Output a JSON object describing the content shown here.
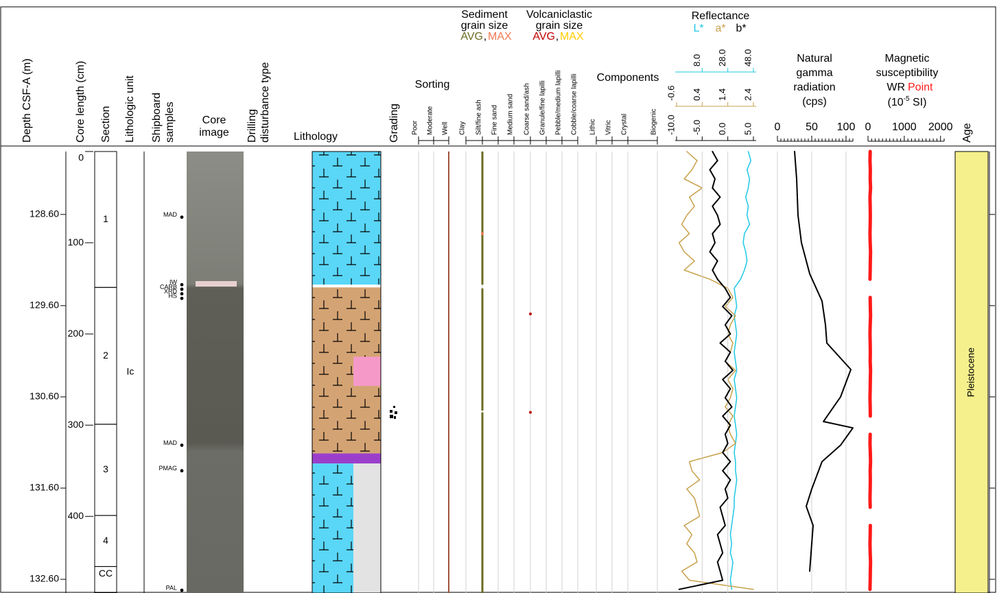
{
  "depth": {
    "label": "Depth CSF-A (m)",
    "lim": [
      127.91,
      132.75
    ],
    "ticks": [
      {
        "value": 128.6,
        "label": "128.60"
      },
      {
        "value": 129.6,
        "label": "129.60"
      },
      {
        "value": 130.6,
        "label": "130.60"
      },
      {
        "value": 131.6,
        "label": "131.60"
      },
      {
        "value": 132.6,
        "label": "132.60"
      }
    ]
  },
  "core_length": {
    "label": "Core length (cm)",
    "lim": [
      0,
      484
    ],
    "ticks": [
      0,
      100,
      200,
      300,
      400
    ]
  },
  "section": {
    "label": "Section",
    "sections": [
      {
        "name": "1",
        "top": 0,
        "bottom": 149
      },
      {
        "name": "2",
        "top": 149,
        "bottom": 299
      },
      {
        "name": "3",
        "top": 299,
        "bottom": 399
      },
      {
        "name": "4",
        "top": 399,
        "bottom": 455
      },
      {
        "name": "CC",
        "top": 455,
        "bottom": 484
      }
    ]
  },
  "lithologic_unit": {
    "label": "Lithologic unit",
    "units": [
      {
        "name": "Ic",
        "top": 0,
        "bottom": 484
      }
    ]
  },
  "samples": {
    "label": [
      "Shipboard",
      "samples"
    ],
    "items": [
      {
        "name": "MAD",
        "cm": 72
      },
      {
        "name": "IW",
        "cm": 146
      },
      {
        "name": "CARB",
        "cm": 151
      },
      {
        "name": "XRD",
        "cm": 156
      },
      {
        "name": "HS",
        "cm": 161
      },
      {
        "name": "MAD",
        "cm": 322
      },
      {
        "name": "PMAG",
        "cm": 350
      },
      {
        "name": "PAL",
        "cm": 481
      }
    ]
  },
  "core_image": {
    "label": [
      "Core",
      "image"
    ]
  },
  "drilling": {
    "label": [
      "Drilling",
      "disturbance type"
    ]
  },
  "lithology": {
    "label": "Lithology",
    "main": [
      {
        "top": 0,
        "bottom": 146,
        "color": "#5ad6f6"
      },
      {
        "top": 146,
        "bottom": 149,
        "color": "#ffffff"
      },
      {
        "top": 149,
        "bottom": 331,
        "color": "#d4a373"
      },
      {
        "top": 331,
        "bottom": 342,
        "color": "#9b3fcb"
      },
      {
        "top": 342,
        "bottom": 484,
        "color": "#5ad6f6"
      }
    ],
    "minor": [
      {
        "top": 225,
        "bottom": 257,
        "color": "#f59ac8"
      },
      {
        "top": 342,
        "bottom": 484,
        "color": "#e3e3e3"
      }
    ]
  },
  "grading": {
    "label": "Grading"
  },
  "sorting": {
    "label": "Sorting",
    "classes": [
      "Poor",
      "Moderate",
      "Well"
    ],
    "color": "#a0523d",
    "intervals": [
      {
        "top": 0,
        "bottom": 484,
        "class": "Well"
      }
    ]
  },
  "grain_size": {
    "sediment_title": [
      "Sediment",
      "grain size"
    ],
    "volcanic_title": [
      "Volcaniclastic",
      "grain size"
    ],
    "separator": ",",
    "sediment_avg": {
      "name": "AVG",
      "color": "#6b6b22"
    },
    "sediment_max": {
      "name": "MAX",
      "color": "#f07850"
    },
    "volcanic_avg": {
      "name": "AVG",
      "color": "#c00000"
    },
    "volcanic_max": {
      "name": "MAX",
      "color": "#ffcc00"
    },
    "classes": [
      "Clay",
      "Silt/fine ash",
      "Fine sand",
      "Medium sand",
      "Coarse sand/ash",
      "Granule/fine lapilli",
      "Pebble/medium lapilli",
      "Cobble/coarse lapilli"
    ],
    "sediment_avg_intervals": [
      {
        "top": 0,
        "bottom": 146,
        "class": "Silt/fine ash"
      },
      {
        "top": 150,
        "bottom": 284,
        "class": "Silt/fine ash"
      },
      {
        "top": 286,
        "bottom": 484,
        "class": "Silt/fine ash"
      }
    ],
    "sediment_max_points": [
      {
        "cm": 90,
        "class": "Silt/fine ash"
      }
    ],
    "volcanic_avg_points": [
      {
        "cm": 178,
        "class": "Coarse sand/ash"
      },
      {
        "cm": 286,
        "class": "Coarse sand/ash"
      }
    ]
  },
  "components": {
    "label": "Components",
    "classes": [
      "Lithic",
      "Vitric",
      "Crystal",
      "Biogenic"
    ]
  },
  "log_cm": [
    0,
    10,
    20,
    30,
    40,
    50,
    60,
    70,
    80,
    90,
    100,
    110,
    120,
    130,
    140,
    150,
    160,
    170,
    180,
    190,
    200,
    210,
    220,
    230,
    240,
    250,
    260,
    270,
    280,
    290,
    300,
    310,
    320,
    330,
    340,
    350,
    360,
    370,
    380,
    390,
    400,
    410,
    420,
    430,
    440,
    450,
    460,
    470,
    480
  ],
  "reflectance": {
    "title": "Reflectance",
    "series": [
      {
        "name": "L*",
        "color": "#1ec8e6",
        "xlim": [
          -12,
          48
        ],
        "xticks": [
          {
            "value": 8,
            "label": "8.0"
          },
          {
            "value": 28,
            "label": "28.0"
          },
          {
            "value": 48,
            "label": "48.0"
          }
        ],
        "values": [
          44,
          46,
          43,
          45,
          44,
          42,
          44,
          43,
          45,
          41,
          40,
          42,
          43,
          41,
          38,
          33,
          34,
          35,
          33,
          34,
          35,
          34,
          33,
          34,
          35,
          33,
          34,
          35,
          34,
          33,
          34,
          35,
          34,
          33,
          34,
          34,
          35,
          34,
          33,
          33,
          32,
          31,
          30,
          31,
          30,
          32,
          31,
          30,
          31
        ]
      },
      {
        "name": "a*",
        "color": "#c8a04a",
        "xlim": [
          -0.6,
          2.4
        ],
        "xticks": [
          -0.6,
          0.4,
          1.4,
          2.4
        ],
        "values": [
          -0.2,
          0.2,
          0,
          -0.3,
          0.4,
          -0.1,
          0.1,
          -0.2,
          -0.4,
          -0.1,
          -0.5,
          -0.3,
          0.1,
          -0.3,
          0.7,
          1.4,
          1.6,
          1.3,
          1.7,
          1.5,
          1.4,
          1.6,
          1.5,
          1.3,
          1.7,
          1.4,
          1.6,
          1.5,
          1.3,
          1.6,
          1.4,
          1.5,
          1.7,
          1.2,
          -0.1,
          0,
          0.3,
          -0.2,
          0.1,
          0.2,
          0.3,
          -0.3,
          0,
          -0.2,
          0.1,
          0.2,
          -0.4,
          -0.1,
          2.4
        ]
      },
      {
        "name": "b*",
        "color": "#000000",
        "xlim": [
          -10,
          5
        ],
        "xticks": [
          {
            "value": -10,
            "label": "-10.0"
          },
          {
            "value": -5,
            "label": "-5.0"
          },
          {
            "value": 0,
            "label": "0.0"
          },
          {
            "value": 5,
            "label": "5.0"
          }
        ],
        "values": [
          -3,
          -2,
          -3.5,
          -2.5,
          -3,
          -1.5,
          -3,
          -2,
          -1.5,
          -3,
          -2.5,
          -3.5,
          -2,
          -3,
          -2,
          -0.5,
          0.5,
          -1,
          0.8,
          -0.5,
          0.5,
          -1.5,
          0.5,
          -0.5,
          1,
          -1,
          0.5,
          -0.5,
          0.8,
          -1,
          0.5,
          -0.5,
          0,
          -1,
          0.5,
          -1,
          0.5,
          -0.5,
          0,
          -1.5,
          -1,
          -0.5,
          -2,
          -1.5,
          -1,
          -2,
          -1.5,
          -1,
          -9.5
        ]
      }
    ]
  },
  "ngr": {
    "title": [
      "Natural",
      "gamma",
      "radiation",
      "(cps)"
    ],
    "color": "#000000",
    "xlim": [
      0,
      110
    ],
    "xticks": [
      0,
      50,
      100
    ],
    "cm": [
      0,
      30,
      70,
      100,
      134,
      164,
      190,
      210,
      239,
      269,
      296,
      303,
      322,
      340,
      370,
      389,
      410,
      430,
      460
    ],
    "values": [
      25,
      28,
      30,
      35,
      47,
      65,
      70,
      72,
      107,
      92,
      67,
      110,
      92,
      65,
      50,
      42,
      52,
      50,
      47
    ]
  },
  "ms": {
    "title": [
      "Magnetic",
      "susceptibility"
    ],
    "wr": "WR",
    "point": "Point",
    "unit": [
      "(10",
      "-5",
      " SI)"
    ],
    "color": "#ff1a1a",
    "xlim": [
      0,
      2100
    ],
    "xticks": [
      0,
      1000,
      2000
    ],
    "values": [
      60,
      55,
      65,
      60,
      70,
      55,
      60,
      65,
      60,
      55,
      60,
      70,
      65,
      60,
      55,
      null,
      60,
      65,
      70,
      60,
      55,
      60,
      65,
      60,
      70,
      65,
      60,
      55,
      60,
      65,
      null,
      60,
      55,
      65,
      70,
      60,
      65,
      60,
      55,
      60,
      null,
      65,
      60,
      55,
      60,
      70,
      65,
      60,
      55
    ]
  },
  "age": {
    "label": "Age",
    "intervals": [
      {
        "name": "Pleistocene",
        "top": 0,
        "bottom": 484,
        "color": "#f5f08c"
      }
    ]
  }
}
